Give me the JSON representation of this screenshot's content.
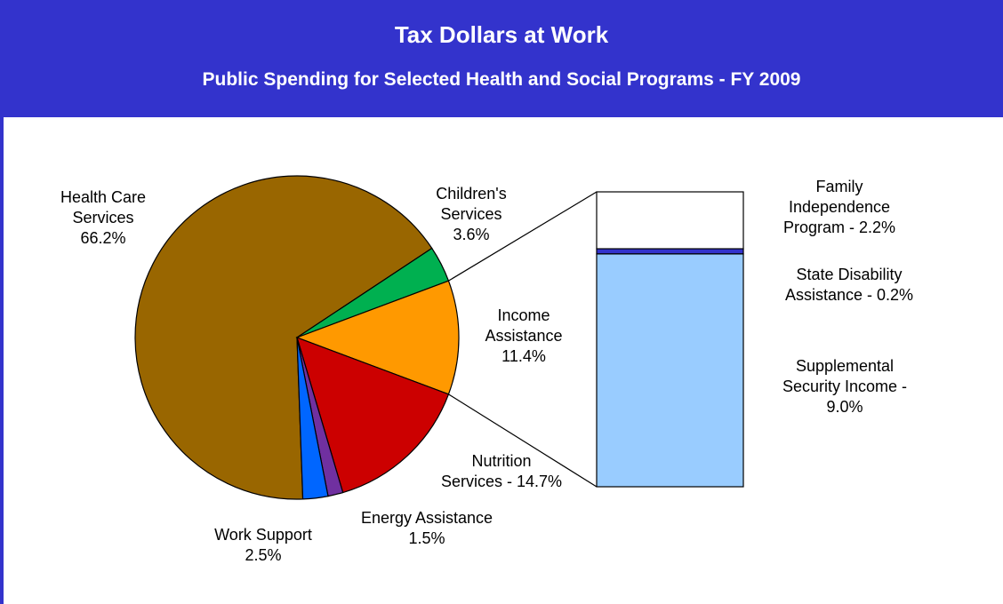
{
  "header": {
    "title": "Tax Dollars at Work",
    "subtitle": "Public Spending for Selected Health and Social Programs - FY 2009"
  },
  "colors": {
    "header_bg": "#3333cc",
    "header_text": "#ffffff"
  },
  "chart_data": {
    "type": "pie",
    "title": "Tax Dollars at Work",
    "subtitle": "Public Spending for Selected Health and Social Programs - FY 2009",
    "unit": "%",
    "slices": [
      {
        "name": "Health Care Services",
        "value": 66.2,
        "color": "#996600",
        "label_lines": [
          "Health Care",
          "Services",
          "66.2%"
        ]
      },
      {
        "name": "Children's Services",
        "value": 3.6,
        "color": "#00b050",
        "label_lines": [
          "Children's",
          "Services",
          "3.6%"
        ]
      },
      {
        "name": "Income Assistance",
        "value": 11.4,
        "color": "#ff9900",
        "label_lines": [
          "Income",
          "Assistance",
          "11.4%"
        ]
      },
      {
        "name": "Nutrition Services",
        "value": 14.7,
        "color": "#cc0000",
        "label_lines": [
          "Nutrition",
          "Services - 14.7%"
        ]
      },
      {
        "name": "Energy Assistance",
        "value": 1.5,
        "color": "#7030a0",
        "label_lines": [
          "Energy Assistance",
          "1.5%"
        ]
      },
      {
        "name": "Work Support",
        "value": 2.5,
        "color": "#0066ff",
        "label_lines": [
          "Work Support",
          "2.5%"
        ]
      }
    ],
    "breakdown": {
      "of": "Income Assistance",
      "type": "stacked-bar",
      "segments": [
        {
          "name": "Family Independence Program",
          "value": 2.2,
          "color": "#ffffff",
          "label_lines": [
            "Family",
            "Independence",
            "Program - 2.2%"
          ]
        },
        {
          "name": "State Disability Assistance",
          "value": 0.2,
          "color": "#3333cc",
          "label_lines": [
            "State Disability",
            "Assistance - 0.2%"
          ]
        },
        {
          "name": "Supplemental Security Income",
          "value": 9.0,
          "color": "#99ccff",
          "label_lines": [
            "Supplemental",
            "Security Income -",
            "9.0%"
          ]
        }
      ]
    }
  }
}
